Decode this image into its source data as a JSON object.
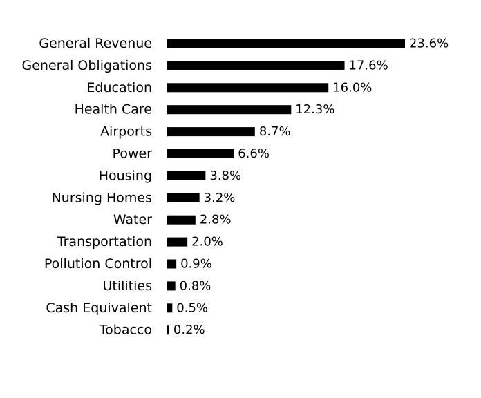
{
  "chart_data": {
    "type": "bar",
    "orientation": "horizontal",
    "categories": [
      "General Revenue",
      "General Obligations",
      "Education",
      "Health Care",
      "Airports",
      "Power",
      "Housing",
      "Nursing Homes",
      "Water",
      "Transportation",
      "Pollution Control",
      "Utilities",
      "Cash Equivalent",
      "Tobacco"
    ],
    "values": [
      23.6,
      17.6,
      16.0,
      12.3,
      8.7,
      6.6,
      3.8,
      3.2,
      2.8,
      2.0,
      0.9,
      0.8,
      0.5,
      0.2
    ],
    "value_labels": [
      "23.6%",
      "17.6%",
      "16.0%",
      "12.3%",
      "8.7%",
      "6.6%",
      "3.8%",
      "3.2%",
      "2.8%",
      "2.0%",
      "0.9%",
      "0.8%",
      "0.5%",
      "0.2%"
    ],
    "title": "",
    "xlabel": "",
    "ylabel": "",
    "grid": false,
    "legend": "none",
    "bar_color": "#000000"
  }
}
